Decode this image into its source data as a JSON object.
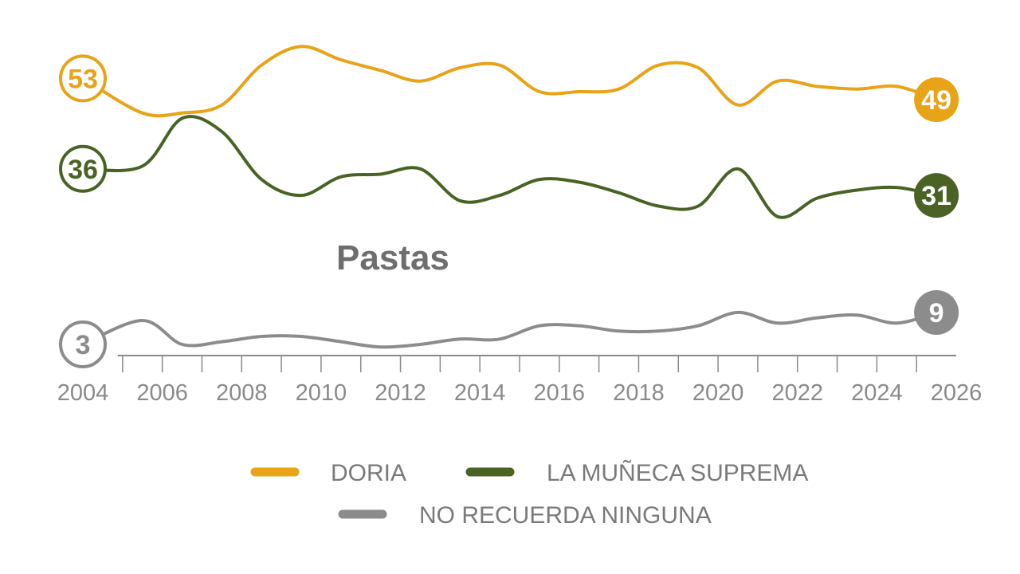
{
  "chart_data": {
    "type": "line",
    "title": "Pastas",
    "x": [
      2004,
      2005,
      2006,
      2007,
      2008,
      2009,
      2010,
      2011,
      2012,
      2013,
      2014,
      2015,
      2016,
      2017,
      2018,
      2019,
      2020,
      2021,
      2022,
      2023,
      2024,
      2025
    ],
    "xticks": [
      "2004",
      "2006",
      "2008",
      "2010",
      "2012",
      "2014",
      "2016",
      "2018",
      "2020",
      "2022",
      "2024",
      "2026"
    ],
    "xlim": [
      2004,
      2026
    ],
    "ylim": [
      0,
      55
    ],
    "series": [
      {
        "name": "DORIA",
        "color": "#E8A317",
        "values": [
          53,
          46.5,
          46.5,
          48,
          55.5,
          59,
          56.5,
          54.5,
          52.5,
          55,
          55.5,
          50.5,
          50.5,
          51,
          55.5,
          55,
          48,
          52.5,
          51.5,
          51,
          51.5,
          49
        ],
        "start_label": "53",
        "end_label": "49"
      },
      {
        "name": "LA MUÑECA SUPREMA",
        "color": "#4A6324",
        "values": [
          36,
          36.5,
          45.5,
          43,
          34,
          31,
          34.5,
          35,
          36,
          30,
          31,
          34,
          33.5,
          31.5,
          29,
          29,
          36,
          27,
          30.5,
          32,
          32.5,
          31
        ],
        "start_label": "36",
        "end_label": "31"
      },
      {
        "name": "NO RECUERDA NINGUNA",
        "color": "#8C8C8C",
        "values": [
          3,
          7.5,
          3,
          3.5,
          4.5,
          4.5,
          3.5,
          2.5,
          3,
          4,
          4,
          6.5,
          6.5,
          5.5,
          5.5,
          6.5,
          9,
          7,
          8,
          8.5,
          7,
          9
        ],
        "start_label": "3",
        "end_label": "9"
      }
    ],
    "legend": [
      {
        "name": "DORIA",
        "color": "#E8A317"
      },
      {
        "name": "LA MUÑECA SUPREMA",
        "color": "#4A6324"
      },
      {
        "name": "NO RECUERDA NINGUNA",
        "color": "#8C8C8C"
      }
    ],
    "legend_position": "bottom"
  }
}
